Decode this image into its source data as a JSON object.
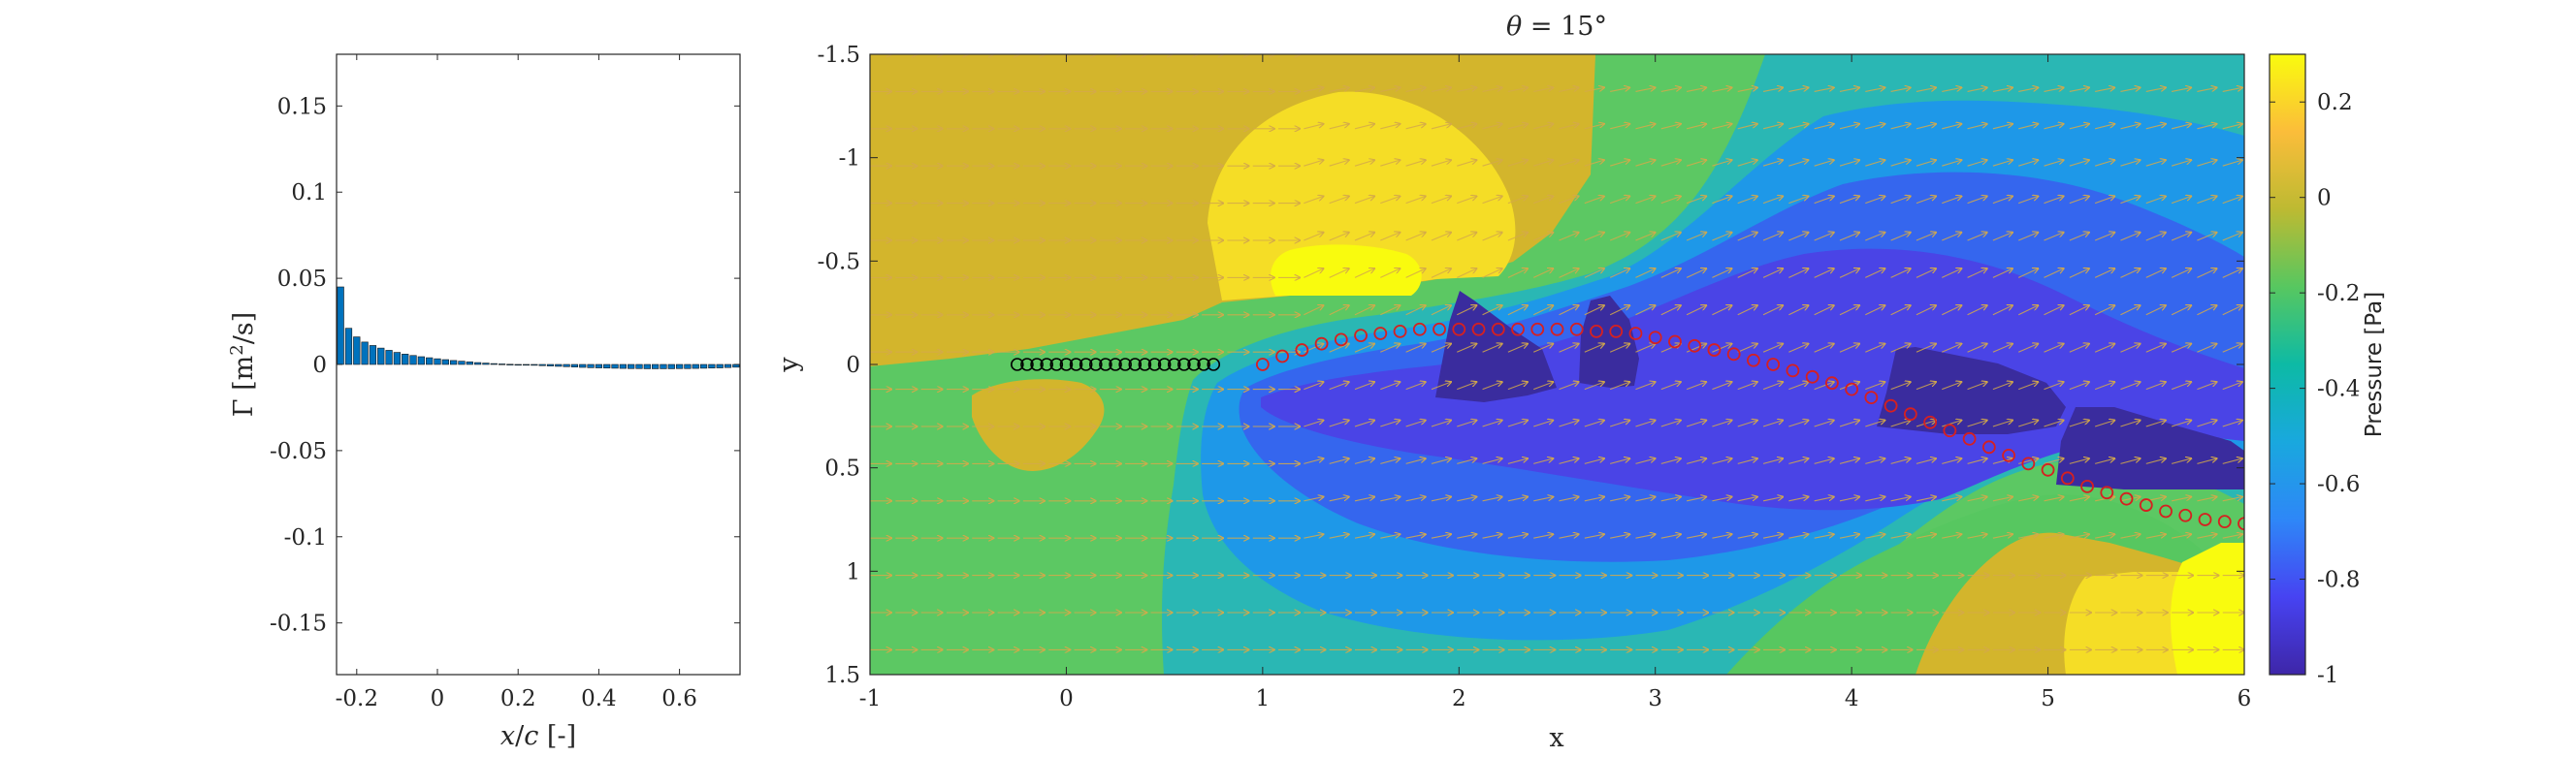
{
  "chart_data": [
    {
      "type": "bar",
      "xlabel": "x/c [-]",
      "ylabel": "Γ [m²/s]",
      "xlim": [
        -0.25,
        0.75
      ],
      "ylim": [
        -0.18,
        0.18
      ],
      "xticks": [
        "-0.2",
        "0",
        "0.2",
        "0.4",
        "0.6"
      ],
      "yticks": [
        "0.15",
        "0.1",
        "0.05",
        "0",
        "-0.05",
        "-0.1",
        "-0.15"
      ],
      "bar_color": "#0072BD",
      "x": [
        -0.24,
        -0.22,
        -0.2,
        -0.18,
        -0.16,
        -0.14,
        -0.12,
        -0.1,
        -0.08,
        -0.06,
        -0.04,
        -0.02,
        0.0,
        0.02,
        0.04,
        0.06,
        0.08,
        0.1,
        0.12,
        0.14,
        0.16,
        0.18,
        0.2,
        0.22,
        0.24,
        0.26,
        0.28,
        0.3,
        0.32,
        0.34,
        0.36,
        0.38,
        0.4,
        0.42,
        0.44,
        0.46,
        0.48,
        0.5,
        0.52,
        0.54,
        0.56,
        0.58,
        0.6,
        0.62,
        0.64,
        0.66,
        0.68,
        0.7,
        0.72,
        0.74
      ],
      "values": [
        0.045,
        0.021,
        0.016,
        0.013,
        0.011,
        0.0095,
        0.0082,
        0.007,
        0.006,
        0.0052,
        0.0045,
        0.0039,
        0.0033,
        0.0028,
        0.0023,
        0.0019,
        0.0015,
        0.0011,
        0.0008,
        0.0005,
        0.0003,
        0.0001,
        -0.0001,
        -0.0003,
        -0.0005,
        -0.0007,
        -0.0009,
        -0.0011,
        -0.0013,
        -0.0015,
        -0.0017,
        -0.0019,
        -0.002,
        -0.0021,
        -0.0022,
        -0.0023,
        -0.0024,
        -0.0024,
        -0.0025,
        -0.0025,
        -0.0025,
        -0.0025,
        -0.0024,
        -0.0024,
        -0.0023,
        -0.0022,
        -0.0021,
        -0.002,
        -0.0018,
        -0.0016
      ]
    },
    {
      "type": "heatmap",
      "title": "θ = 15°",
      "xlabel": "x",
      "ylabel": "y",
      "xlim": [
        -1,
        6
      ],
      "ylim": [
        -1.5,
        1.5
      ],
      "y_axis_reversed": true,
      "xticks": [
        "-1",
        "0",
        "1",
        "2",
        "3",
        "4",
        "5",
        "6"
      ],
      "yticks": [
        "-1.5",
        "-1",
        "-0.5",
        "0",
        "0.5",
        "1",
        "1.5"
      ],
      "colorbar": {
        "label": "Pressure [Pa]",
        "range": [
          -1,
          0.3
        ],
        "ticks": [
          "0.2",
          "0",
          "-0.2",
          "-0.4",
          "-0.6",
          "-0.8",
          "-1"
        ]
      },
      "series": [
        {
          "name": "",
          "marker": "circle",
          "color": "#000000",
          "x": [
            -0.25,
            -0.2,
            -0.15,
            -0.1,
            -0.05,
            0.0,
            0.05,
            0.1,
            0.15,
            0.2,
            0.25,
            0.3,
            0.35,
            0.4,
            0.45,
            0.5,
            0.55,
            0.6,
            0.65,
            0.7,
            0.75
          ],
          "y": [
            0,
            0,
            0,
            0,
            0,
            0,
            0,
            0,
            0,
            0,
            0,
            0,
            0,
            0,
            0,
            0,
            0,
            0,
            0,
            0,
            0
          ]
        },
        {
          "name": "",
          "marker": "circle",
          "color": "#D62020",
          "x": [
            1.0,
            1.1,
            1.2,
            1.3,
            1.4,
            1.5,
            1.6,
            1.7,
            1.8,
            1.9,
            2.0,
            2.1,
            2.2,
            2.3,
            2.4,
            2.5,
            2.6,
            2.7,
            2.8,
            2.9,
            3.0,
            3.1,
            3.2,
            3.3,
            3.4,
            3.5,
            3.6,
            3.7,
            3.8,
            3.9,
            4.0,
            4.1,
            4.2,
            4.3,
            4.4,
            4.5,
            4.6,
            4.7,
            4.8,
            4.9,
            5.0,
            5.1,
            5.2,
            5.3,
            5.4,
            5.5,
            5.6,
            5.7,
            5.8,
            5.9,
            6.0
          ],
          "y": [
            0.0,
            -0.04,
            -0.07,
            -0.1,
            -0.12,
            -0.14,
            -0.15,
            -0.16,
            -0.17,
            -0.17,
            -0.17,
            -0.17,
            -0.17,
            -0.17,
            -0.17,
            -0.17,
            -0.17,
            -0.16,
            -0.16,
            -0.15,
            -0.13,
            -0.11,
            -0.09,
            -0.07,
            -0.05,
            -0.02,
            0.0,
            0.03,
            0.06,
            0.09,
            0.12,
            0.16,
            0.2,
            0.24,
            0.28,
            0.32,
            0.36,
            0.4,
            0.44,
            0.48,
            0.51,
            0.55,
            0.59,
            0.62,
            0.65,
            0.68,
            0.71,
            0.73,
            0.75,
            0.76,
            0.77
          ]
        }
      ]
    }
  ]
}
